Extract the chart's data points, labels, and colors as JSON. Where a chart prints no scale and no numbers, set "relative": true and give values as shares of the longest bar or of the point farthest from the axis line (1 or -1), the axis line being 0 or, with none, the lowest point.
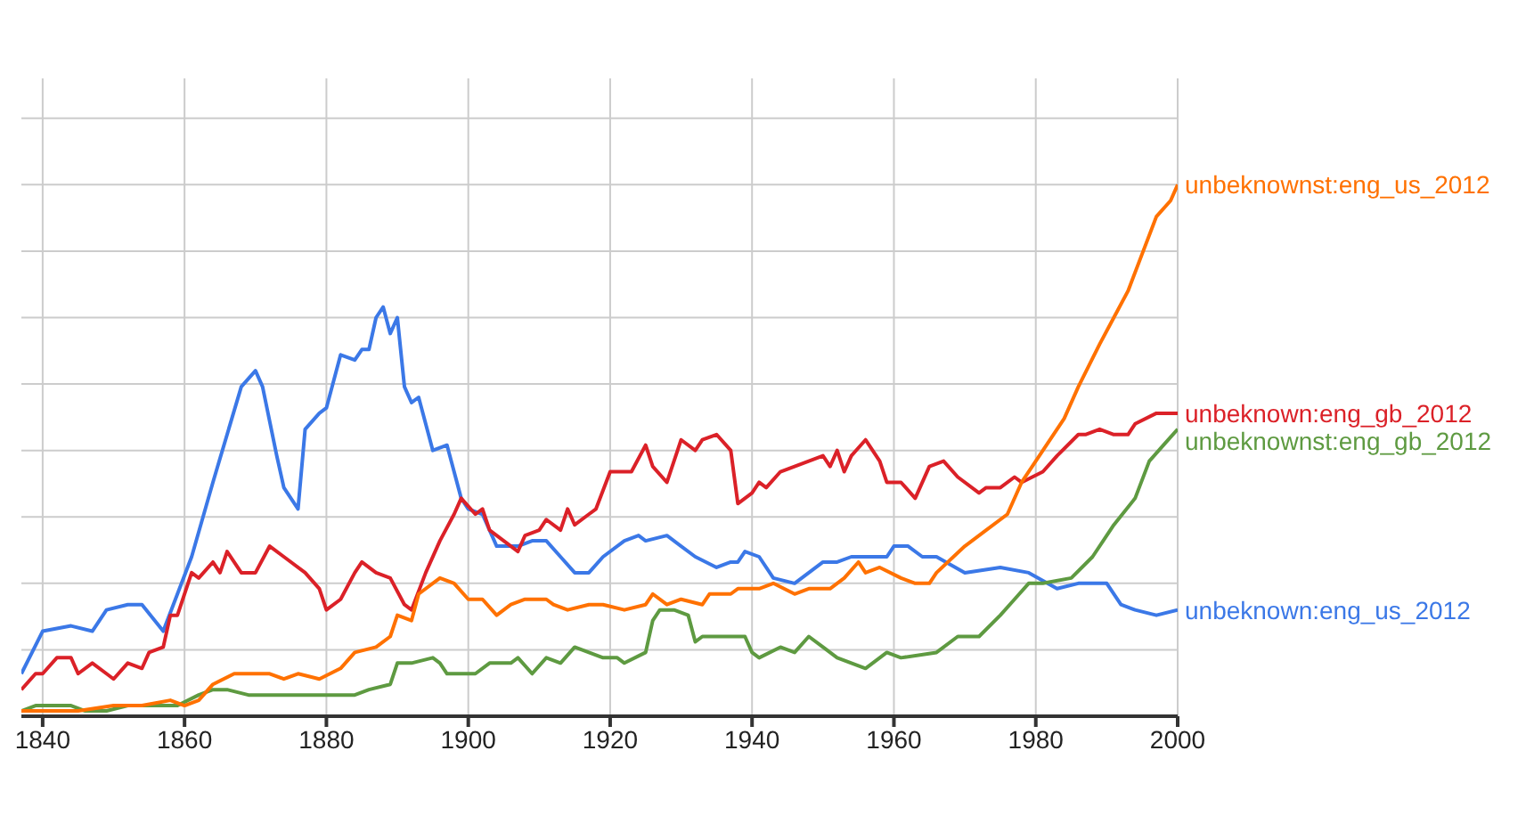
{
  "chart_data": {
    "type": "line",
    "relative": true,
    "grid": true,
    "marker": "none",
    "xlim": [
      1837,
      2000
    ],
    "xticks": [
      1840,
      1860,
      1880,
      1900,
      1920,
      1940,
      1960,
      1980,
      2000
    ],
    "series": [
      {
        "name": "unbeknown:eng_us_2012",
        "color": "#3b78e7",
        "x": [
          1837,
          1840,
          1844,
          1847,
          1849,
          1852,
          1854,
          1857,
          1859,
          1861,
          1864,
          1868,
          1870,
          1871,
          1873,
          1874,
          1876,
          1877,
          1879,
          1880,
          1882,
          1884,
          1885,
          1886,
          1887,
          1888,
          1889,
          1890,
          1891,
          1892,
          1893,
          1895,
          1897,
          1899,
          1900,
          1902,
          1904,
          1907,
          1909,
          1911,
          1913,
          1915,
          1917,
          1919,
          1922,
          1924,
          1925,
          1928,
          1932,
          1935,
          1937,
          1938,
          1939,
          1941,
          1943,
          1946,
          1950,
          1952,
          1954,
          1957,
          1959,
          1960,
          1962,
          1964,
          1966,
          1970,
          1975,
          1979,
          1983,
          1986,
          1988,
          1990,
          1992,
          1994,
          1997,
          2000
        ],
        "values": [
          0.08,
          0.16,
          0.17,
          0.16,
          0.2,
          0.21,
          0.21,
          0.16,
          0.23,
          0.3,
          0.44,
          0.62,
          0.65,
          0.62,
          0.49,
          0.43,
          0.39,
          0.54,
          0.57,
          0.58,
          0.68,
          0.67,
          0.69,
          0.69,
          0.75,
          0.77,
          0.72,
          0.75,
          0.62,
          0.59,
          0.6,
          0.5,
          0.51,
          0.41,
          0.39,
          0.38,
          0.32,
          0.32,
          0.33,
          0.33,
          0.3,
          0.27,
          0.27,
          0.3,
          0.33,
          0.34,
          0.33,
          0.34,
          0.3,
          0.28,
          0.29,
          0.29,
          0.31,
          0.3,
          0.26,
          0.25,
          0.29,
          0.29,
          0.3,
          0.3,
          0.3,
          0.32,
          0.32,
          0.3,
          0.3,
          0.27,
          0.28,
          0.27,
          0.24,
          0.25,
          0.25,
          0.25,
          0.21,
          0.2,
          0.19,
          0.2
        ]
      },
      {
        "name": "unbeknown:eng_gb_2012",
        "color": "#db2128",
        "x": [
          1837,
          1839,
          1840,
          1842,
          1844,
          1845,
          1847,
          1849,
          1850,
          1852,
          1854,
          1855,
          1857,
          1858,
          1859,
          1861,
          1862,
          1864,
          1865,
          1866,
          1868,
          1870,
          1872,
          1874,
          1877,
          1879,
          1880,
          1882,
          1884,
          1885,
          1887,
          1889,
          1891,
          1892,
          1894,
          1896,
          1898,
          1899,
          1901,
          1902,
          1903,
          1907,
          1908,
          1910,
          1911,
          1913,
          1914,
          1915,
          1917,
          1918,
          1920,
          1923,
          1925,
          1926,
          1928,
          1930,
          1932,
          1933,
          1935,
          1937,
          1938,
          1940,
          1941,
          1942,
          1944,
          1946,
          1948,
          1950,
          1951,
          1952,
          1953,
          1954,
          1956,
          1958,
          1959,
          1961,
          1963,
          1965,
          1967,
          1969,
          1972,
          1973,
          1975,
          1977,
          1978,
          1981,
          1983,
          1986,
          1987,
          1989,
          1991,
          1993,
          1994,
          1997,
          2000
        ],
        "values": [
          0.05,
          0.08,
          0.08,
          0.11,
          0.11,
          0.08,
          0.1,
          0.08,
          0.07,
          0.1,
          0.09,
          0.12,
          0.13,
          0.19,
          0.19,
          0.27,
          0.26,
          0.29,
          0.27,
          0.31,
          0.27,
          0.27,
          0.32,
          0.3,
          0.27,
          0.24,
          0.2,
          0.22,
          0.27,
          0.29,
          0.27,
          0.26,
          0.21,
          0.2,
          0.27,
          0.33,
          0.38,
          0.41,
          0.38,
          0.39,
          0.35,
          0.31,
          0.34,
          0.35,
          0.37,
          0.35,
          0.39,
          0.36,
          0.38,
          0.39,
          0.46,
          0.46,
          0.51,
          0.47,
          0.44,
          0.52,
          0.5,
          0.52,
          0.53,
          0.5,
          0.4,
          0.42,
          0.44,
          0.43,
          0.46,
          0.47,
          0.48,
          0.49,
          0.47,
          0.5,
          0.46,
          0.49,
          0.52,
          0.48,
          0.44,
          0.44,
          0.41,
          0.47,
          0.48,
          0.45,
          0.42,
          0.43,
          0.43,
          0.45,
          0.44,
          0.46,
          0.49,
          0.53,
          0.53,
          0.54,
          0.53,
          0.53,
          0.55,
          0.57,
          0.57
        ]
      },
      {
        "name": "unbeknownst:eng_gb_2012",
        "color": "#5e9a41",
        "x": [
          1837,
          1839,
          1842,
          1844,
          1846,
          1849,
          1852,
          1854,
          1857,
          1859,
          1862,
          1864,
          1866,
          1869,
          1871,
          1874,
          1876,
          1879,
          1884,
          1886,
          1889,
          1890,
          1892,
          1895,
          1896,
          1897,
          1901,
          1903,
          1906,
          1907,
          1909,
          1911,
          1913,
          1915,
          1917,
          1919,
          1921,
          1922,
          1925,
          1926,
          1927,
          1929,
          1931,
          1932,
          1933,
          1937,
          1939,
          1940,
          1941,
          1944,
          1946,
          1948,
          1950,
          1952,
          1956,
          1959,
          1961,
          1966,
          1969,
          1972,
          1975,
          1977,
          1979,
          1981,
          1985,
          1988,
          1990,
          1991,
          1994,
          1996,
          1998,
          2000
        ],
        "values": [
          0.01,
          0.02,
          0.02,
          0.02,
          0.01,
          0.01,
          0.02,
          0.02,
          0.02,
          0.02,
          0.04,
          0.05,
          0.05,
          0.04,
          0.04,
          0.04,
          0.04,
          0.04,
          0.04,
          0.05,
          0.06,
          0.1,
          0.1,
          0.11,
          0.1,
          0.08,
          0.08,
          0.1,
          0.1,
          0.11,
          0.08,
          0.11,
          0.1,
          0.13,
          0.12,
          0.11,
          0.11,
          0.1,
          0.12,
          0.18,
          0.2,
          0.2,
          0.19,
          0.14,
          0.15,
          0.15,
          0.15,
          0.12,
          0.11,
          0.13,
          0.12,
          0.15,
          0.13,
          0.11,
          0.09,
          0.12,
          0.11,
          0.12,
          0.15,
          0.15,
          0.19,
          0.22,
          0.25,
          0.25,
          0.26,
          0.3,
          0.34,
          0.36,
          0.41,
          0.48,
          0.51,
          0.54
        ]
      },
      {
        "name": "unbeknownst:eng_us_2012",
        "color": "#ff7100",
        "x": [
          1837,
          1842,
          1845,
          1850,
          1854,
          1858,
          1860,
          1862,
          1864,
          1867,
          1869,
          1872,
          1874,
          1876,
          1879,
          1882,
          1884,
          1887,
          1889,
          1890,
          1892,
          1893,
          1896,
          1898,
          1900,
          1902,
          1904,
          1906,
          1908,
          1911,
          1912,
          1914,
          1917,
          1919,
          1922,
          1925,
          1926,
          1928,
          1930,
          1933,
          1934,
          1937,
          1938,
          1941,
          1943,
          1946,
          1948,
          1951,
          1953,
          1955,
          1956,
          1958,
          1961,
          1963,
          1965,
          1966,
          1970,
          1973,
          1976,
          1978,
          1981,
          1984,
          1986,
          1989,
          1991,
          1993,
          1995,
          1997,
          1999,
          2000
        ],
        "values": [
          0.01,
          0.01,
          0.01,
          0.02,
          0.02,
          0.03,
          0.02,
          0.03,
          0.06,
          0.08,
          0.08,
          0.08,
          0.07,
          0.08,
          0.07,
          0.09,
          0.12,
          0.13,
          0.15,
          0.19,
          0.18,
          0.23,
          0.26,
          0.25,
          0.22,
          0.22,
          0.19,
          0.21,
          0.22,
          0.22,
          0.21,
          0.2,
          0.21,
          0.21,
          0.2,
          0.21,
          0.23,
          0.21,
          0.22,
          0.21,
          0.23,
          0.23,
          0.24,
          0.24,
          0.25,
          0.23,
          0.24,
          0.24,
          0.26,
          0.29,
          0.27,
          0.28,
          0.26,
          0.25,
          0.25,
          0.27,
          0.32,
          0.35,
          0.38,
          0.44,
          0.5,
          0.56,
          0.62,
          0.7,
          0.75,
          0.8,
          0.87,
          0.94,
          0.97,
          1
        ]
      }
    ]
  }
}
